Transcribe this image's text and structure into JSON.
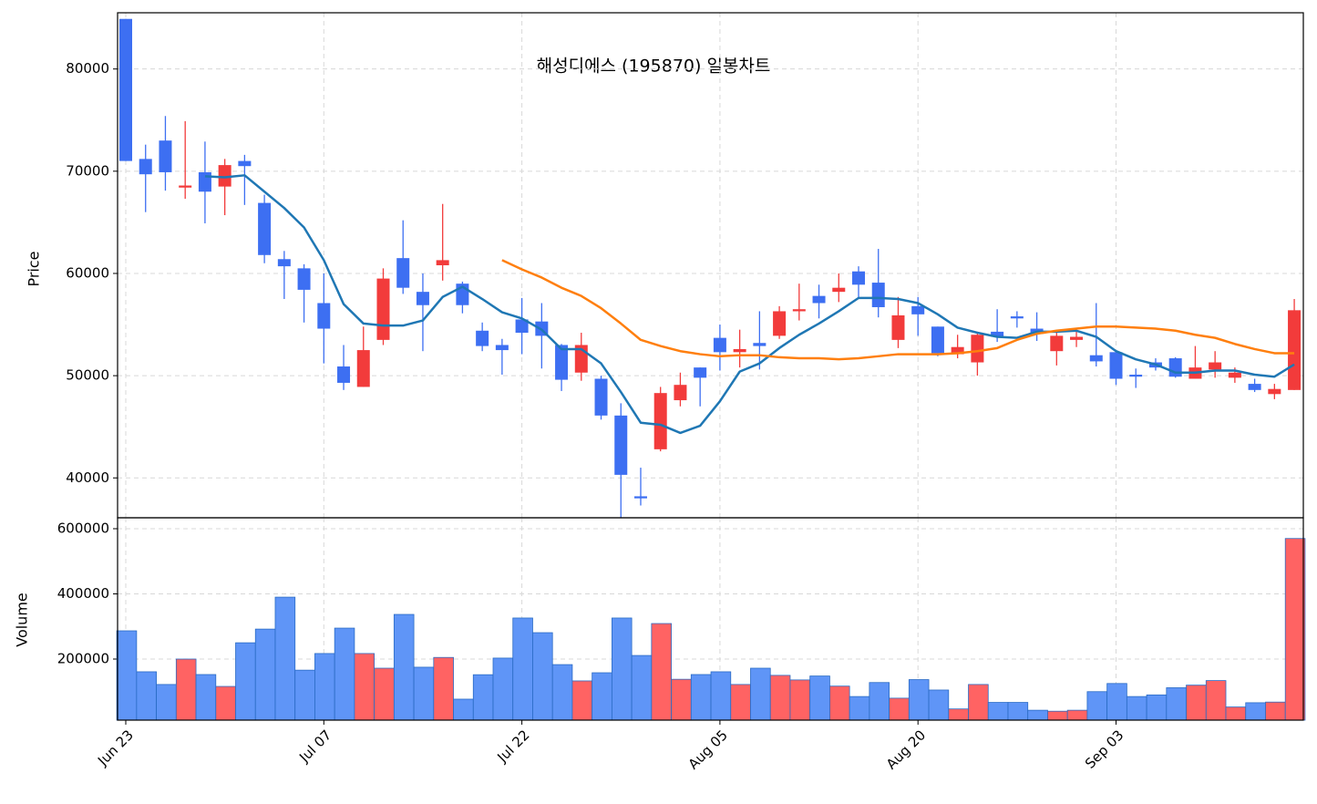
{
  "chart_data": [
    {
      "type": "candlestick",
      "title": "해성디에스 (195870) 일봉차트",
      "y_label": "Price",
      "ylim": [
        36100,
        85500
      ],
      "yticks": [
        40000,
        50000,
        60000,
        70000,
        80000
      ],
      "grid": true,
      "up_color": "#f23b3b",
      "down_color": "#3d6ff2",
      "open": [
        84900,
        71200,
        73000,
        68400,
        69900,
        68500,
        71000,
        66900,
        61400,
        60500,
        57100,
        50900,
        48900,
        53500,
        61500,
        58200,
        60800,
        59000,
        54400,
        53000,
        55500,
        55300,
        53000,
        50300,
        49700,
        46100,
        38200,
        42800,
        47600,
        50800,
        53700,
        52300,
        53200,
        53900,
        56300,
        57800,
        58200,
        60200,
        59100,
        53500,
        56800,
        54800,
        52100,
        51300,
        54300,
        55800,
        54600,
        52400,
        53500,
        52000,
        52300,
        50100,
        51300,
        51700,
        49700,
        50600,
        49800,
        49200,
        48200,
        48600
      ],
      "high": [
        84900,
        72600,
        75400,
        74900,
        72900,
        71200,
        71600,
        67700,
        62200,
        60900,
        60000,
        53000,
        54800,
        60500,
        65200,
        60000,
        66800,
        59200,
        55200,
        53600,
        57600,
        57100,
        53100,
        54200,
        50000,
        47300,
        41000,
        48900,
        50300,
        50800,
        55000,
        54500,
        56300,
        56800,
        59000,
        58900,
        60000,
        60700,
        62400,
        57700,
        57700,
        54800,
        54000,
        54300,
        56500,
        56300,
        56200,
        54200,
        54300,
        57100,
        52500,
        50700,
        51700,
        51800,
        52900,
        52400,
        50800,
        49700,
        49200,
        57500
      ],
      "low": [
        71000,
        66000,
        68100,
        67300,
        64900,
        65700,
        66700,
        61000,
        57500,
        55200,
        51200,
        48600,
        48900,
        53000,
        58000,
        52400,
        59300,
        56100,
        52400,
        50100,
        52100,
        50700,
        48500,
        49500,
        45700,
        36100,
        37300,
        42600,
        47000,
        47000,
        50500,
        50800,
        50600,
        53600,
        55400,
        55600,
        57200,
        57600,
        55700,
        52700,
        53900,
        51900,
        51700,
        50000,
        53300,
        54700,
        53400,
        51000,
        52800,
        50900,
        49100,
        48800,
        50500,
        49800,
        49700,
        49800,
        49300,
        48400,
        47700,
        48600
      ],
      "close": [
        71000,
        69700,
        69900,
        68600,
        68000,
        70600,
        70500,
        61800,
        60700,
        58400,
        54600,
        49300,
        52500,
        59500,
        58600,
        56900,
        61300,
        56900,
        52900,
        52500,
        54200,
        53900,
        49600,
        53000,
        46100,
        40300,
        38000,
        48300,
        49100,
        49800,
        52300,
        52600,
        52900,
        56300,
        56500,
        57100,
        58600,
        58900,
        56700,
        55900,
        56000,
        52200,
        52800,
        54000,
        53800,
        55600,
        54100,
        53900,
        53800,
        51400,
        49700,
        49900,
        50800,
        49900,
        50800,
        51300,
        50300,
        48600,
        48700,
        56400
      ],
      "lines": [
        {
          "color": "#1f77b4",
          "values": [
            null,
            null,
            null,
            null,
            69500,
            69400,
            69600,
            68000,
            66400,
            64500,
            61300,
            57000,
            55100,
            54900,
            54900,
            55400,
            57700,
            58700,
            57500,
            56200,
            55600,
            54500,
            52600,
            52600,
            51200,
            48400,
            45400,
            45200,
            44400,
            45100,
            47500,
            50400,
            51200,
            52700,
            54000,
            55100,
            56300,
            57600,
            57600,
            57500,
            57100,
            56000,
            54700,
            54200,
            53800,
            53700,
            54300,
            54300,
            54400,
            53800,
            52400,
            51600,
            51100,
            50300,
            50300,
            50500,
            50500,
            50100,
            49900,
            51100
          ]
        },
        {
          "color": "#ff7f0e",
          "values": [
            null,
            null,
            null,
            null,
            null,
            null,
            null,
            null,
            null,
            null,
            null,
            null,
            null,
            null,
            null,
            null,
            null,
            null,
            null,
            61300,
            60400,
            59600,
            58600,
            57800,
            56600,
            55100,
            53500,
            52900,
            52400,
            52100,
            51900,
            52000,
            52000,
            51800,
            51700,
            51700,
            51600,
            51700,
            51900,
            52100,
            52100,
            52100,
            52200,
            52400,
            52700,
            53500,
            54100,
            54400,
            54600,
            54800,
            54800,
            54700,
            54600,
            54400,
            54000,
            53700,
            53100,
            52600,
            52200,
            52200
          ]
        }
      ]
    },
    {
      "type": "bar",
      "y_label": "Volume",
      "ylim": [
        12600,
        633600
      ],
      "yticks": [
        200000,
        400000,
        600000
      ],
      "grid": true,
      "up_color": "#ff6363",
      "down_color": "#5f95f7",
      "edge_color": "#2a6bc4",
      "categories": [
        "Jun 23",
        null,
        null,
        null,
        null,
        null,
        null,
        null,
        null,
        null,
        "Jul 07",
        null,
        null,
        null,
        null,
        null,
        null,
        null,
        null,
        null,
        "Jul 22",
        null,
        null,
        null,
        null,
        null,
        null,
        null,
        null,
        null,
        "Aug 05",
        null,
        null,
        null,
        null,
        null,
        null,
        null,
        null,
        null,
        "Aug 20",
        null,
        null,
        null,
        null,
        null,
        null,
        null,
        null,
        null,
        "Sep 03",
        null,
        null,
        null,
        null,
        null,
        null,
        null,
        null,
        null
      ],
      "values": [
        286700,
        161000,
        122000,
        200000,
        152500,
        116000,
        250000,
        292000,
        390000,
        166000,
        217000,
        295000,
        217000,
        172000,
        337000,
        175000,
        205000,
        77000,
        152000,
        203000,
        326000,
        281000,
        183000,
        133000,
        158000,
        326000,
        211000,
        309000,
        138000,
        152500,
        161000,
        122000,
        172000,
        150000,
        136000,
        148000,
        117000,
        85000,
        128000,
        80000,
        137000,
        105000,
        47000,
        122000,
        67000,
        67000,
        43000,
        40000,
        43000,
        100000,
        125000,
        85000,
        90000,
        112000,
        120000,
        134000,
        53000,
        66000,
        68000,
        570000
      ]
    }
  ]
}
